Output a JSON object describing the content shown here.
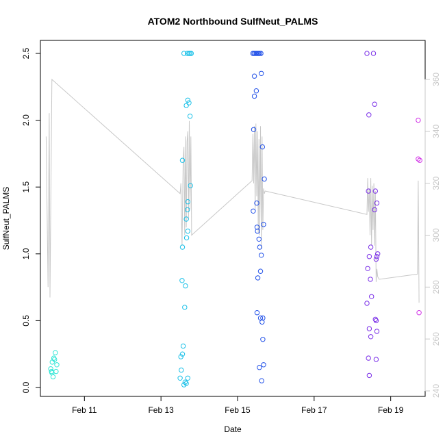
{
  "chart_data": {
    "type": "scatter",
    "title": "ATOM2 Northbound SulfNeut_PALMS",
    "xlabel": "Date",
    "ylabel": "SulfNeut_PALMS",
    "x_ticks": [
      "Feb 11",
      "Feb 13",
      "Feb 15",
      "Feb 17",
      "Feb 19"
    ],
    "x_tick_values": [
      11,
      13,
      15,
      17,
      19
    ],
    "xlim": [
      9.85,
      19.9
    ],
    "y_ticks": [
      "0.0",
      "0.5",
      "1.0",
      "1.5",
      "2.0",
      "2.5"
    ],
    "y_tick_values": [
      0,
      0.5,
      1,
      1.5,
      2,
      2.5
    ],
    "ylim": [
      0,
      2.5
    ],
    "y2_ticks": [
      "240",
      "260",
      "280",
      "300",
      "320",
      "340",
      "360"
    ],
    "y2_tick_values": [
      240,
      260,
      280,
      300,
      320,
      340,
      360
    ],
    "y2lim": [
      240,
      360
    ],
    "grid": false,
    "colors": {
      "line": "#c8c8c8",
      "axis": "#000000",
      "right_axis": "#c8c8c8",
      "flight1": "#2ee6d6",
      "flight2": "#18c0e8",
      "flight3": "#1f4fe8",
      "flight4": "#7a2ee8",
      "flight5": "#d02ee6"
    },
    "series": [
      {
        "color_key": "flight1",
        "points": [
          [
            10.12,
            0.14
          ],
          [
            10.15,
            0.11
          ],
          [
            10.18,
            0.08
          ],
          [
            10.2,
            0.22
          ],
          [
            10.22,
            0.21
          ],
          [
            10.24,
            0.26
          ],
          [
            10.26,
            0.12
          ],
          [
            10.28,
            0.17
          ],
          [
            10.16,
            0.19
          ],
          [
            10.14,
            0.12
          ]
        ]
      },
      {
        "color_key": "flight2",
        "points": [
          [
            13.5,
            0.07
          ],
          [
            13.53,
            0.13
          ],
          [
            13.56,
            0.25
          ],
          [
            13.58,
            0.31
          ],
          [
            13.6,
            0.02
          ],
          [
            13.63,
            0.04
          ],
          [
            13.66,
            0.03
          ],
          [
            13.7,
            0.07
          ],
          [
            13.52,
            0.23
          ],
          [
            13.55,
            0.8
          ],
          [
            13.64,
            0.76
          ],
          [
            13.62,
            0.6
          ],
          [
            13.56,
            1.05
          ],
          [
            13.67,
            1.12
          ],
          [
            13.7,
            1.17
          ],
          [
            13.66,
            1.26
          ],
          [
            13.69,
            1.33
          ],
          [
            13.7,
            1.39
          ],
          [
            13.77,
            1.51
          ],
          [
            13.56,
            1.7
          ],
          [
            13.66,
            2.11
          ],
          [
            13.7,
            2.15
          ],
          [
            13.73,
            2.13
          ],
          [
            13.76,
            2.03
          ],
          [
            13.6,
            2.5
          ],
          [
            13.69,
            2.5
          ],
          [
            13.73,
            2.5
          ],
          [
            13.76,
            2.5
          ],
          [
            13.79,
            2.5
          ]
        ]
      },
      {
        "color_key": "flight3",
        "points": [
          [
            15.4,
            2.5
          ],
          [
            15.43,
            2.5
          ],
          [
            15.46,
            2.5
          ],
          [
            15.49,
            2.5
          ],
          [
            15.52,
            2.5
          ],
          [
            15.55,
            2.5
          ],
          [
            15.58,
            2.5
          ],
          [
            15.61,
            2.5
          ],
          [
            15.44,
            2.33
          ],
          [
            15.62,
            2.35
          ],
          [
            15.49,
            2.22
          ],
          [
            15.44,
            2.18
          ],
          [
            15.42,
            1.93
          ],
          [
            15.65,
            1.8
          ],
          [
            15.7,
            1.56
          ],
          [
            15.5,
            1.38
          ],
          [
            15.41,
            1.32
          ],
          [
            15.68,
            1.22
          ],
          [
            15.51,
            1.2
          ],
          [
            15.52,
            1.17
          ],
          [
            15.56,
            1.11
          ],
          [
            15.58,
            1.05
          ],
          [
            15.62,
            0.99
          ],
          [
            15.6,
            0.87
          ],
          [
            15.53,
            0.82
          ],
          [
            15.51,
            0.56
          ],
          [
            15.6,
            0.52
          ],
          [
            15.66,
            0.52
          ],
          [
            15.64,
            0.49
          ],
          [
            15.66,
            0.36
          ],
          [
            15.68,
            0.17
          ],
          [
            15.57,
            0.15
          ],
          [
            15.63,
            0.05
          ]
        ]
      },
      {
        "color_key": "flight4",
        "points": [
          [
            18.38,
            2.5
          ],
          [
            18.55,
            2.5
          ],
          [
            18.43,
            2.04
          ],
          [
            18.58,
            2.12
          ],
          [
            18.42,
            1.47
          ],
          [
            18.6,
            1.47
          ],
          [
            18.64,
            1.38
          ],
          [
            18.58,
            1.33
          ],
          [
            18.48,
            1.05
          ],
          [
            18.66,
            1.0
          ],
          [
            18.64,
            0.98
          ],
          [
            18.62,
            0.96
          ],
          [
            18.44,
            0.98
          ],
          [
            18.4,
            0.89
          ],
          [
            18.47,
            0.81
          ],
          [
            18.5,
            0.68
          ],
          [
            18.38,
            0.63
          ],
          [
            18.62,
            0.5
          ],
          [
            18.6,
            0.51
          ],
          [
            18.44,
            0.44
          ],
          [
            18.64,
            0.42
          ],
          [
            18.48,
            0.38
          ],
          [
            18.42,
            0.22
          ],
          [
            18.62,
            0.21
          ],
          [
            18.44,
            0.09
          ]
        ]
      },
      {
        "color_key": "flight5",
        "points": [
          [
            19.72,
            2.0
          ],
          [
            19.72,
            1.71
          ],
          [
            19.76,
            1.7
          ],
          [
            19.74,
            0.56
          ]
        ]
      }
    ],
    "line": [
      [
        10.0,
        338
      ],
      [
        10.05,
        280
      ],
      [
        10.08,
        347
      ],
      [
        10.1,
        276
      ],
      [
        10.15,
        360
      ],
      [
        13.5,
        316
      ],
      [
        13.52,
        320
      ],
      [
        13.55,
        296
      ],
      [
        13.58,
        330
      ],
      [
        13.6,
        334
      ],
      [
        13.62,
        300
      ],
      [
        13.64,
        338
      ],
      [
        13.66,
        303
      ],
      [
        13.68,
        336
      ],
      [
        13.7,
        340
      ],
      [
        13.72,
        306
      ],
      [
        13.74,
        344
      ],
      [
        13.76,
        310
      ],
      [
        13.78,
        338
      ],
      [
        13.8,
        300
      ],
      [
        15.38,
        321
      ],
      [
        15.4,
        339
      ],
      [
        15.42,
        320
      ],
      [
        15.44,
        342
      ],
      [
        15.46,
        310
      ],
      [
        15.48,
        343
      ],
      [
        15.5,
        315
      ],
      [
        15.52,
        340
      ],
      [
        15.54,
        301
      ],
      [
        15.56,
        337
      ],
      [
        15.58,
        300
      ],
      [
        15.6,
        342
      ],
      [
        15.62,
        295
      ],
      [
        15.64,
        338
      ],
      [
        15.66,
        302
      ],
      [
        15.68,
        318
      ],
      [
        15.7,
        316
      ],
      [
        15.72,
        317
      ],
      [
        18.38,
        308
      ],
      [
        18.4,
        322
      ],
      [
        18.42,
        309
      ],
      [
        18.44,
        318
      ],
      [
        18.46,
        300
      ],
      [
        18.48,
        322
      ],
      [
        18.5,
        296
      ],
      [
        18.52,
        319
      ],
      [
        18.54,
        302
      ],
      [
        18.56,
        320
      ],
      [
        18.58,
        296
      ],
      [
        18.6,
        317
      ],
      [
        18.62,
        282
      ],
      [
        18.64,
        287
      ],
      [
        18.66,
        284
      ],
      [
        18.7,
        283
      ],
      [
        19.7,
        285
      ],
      [
        19.72,
        321
      ],
      [
        19.74,
        274
      ]
    ]
  }
}
